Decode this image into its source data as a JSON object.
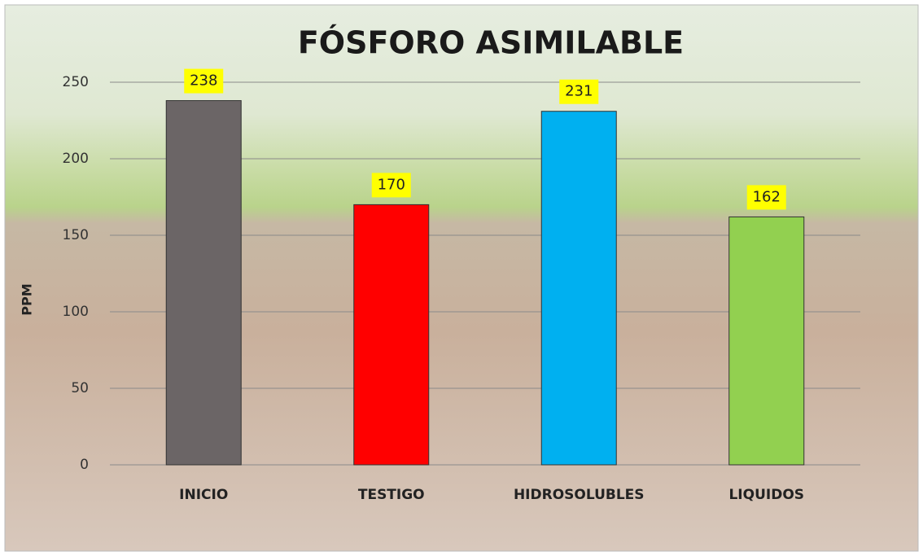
{
  "chart_data": {
    "type": "bar",
    "title": "FÓSFORO ASIMILABLE",
    "y_label": "PPM",
    "categories": [
      "INICIO",
      "TESTIGO",
      "HIDROSOLUBLES",
      "LIQUIDOS"
    ],
    "values": [
      238,
      170,
      231,
      162
    ],
    "colors": [
      "#6b6566",
      "#ff0000",
      "#00b0f0",
      "#92d050"
    ],
    "ylim": [
      0,
      250
    ],
    "yticks": [
      0,
      50,
      100,
      150,
      200,
      250
    ],
    "grid": true
  }
}
